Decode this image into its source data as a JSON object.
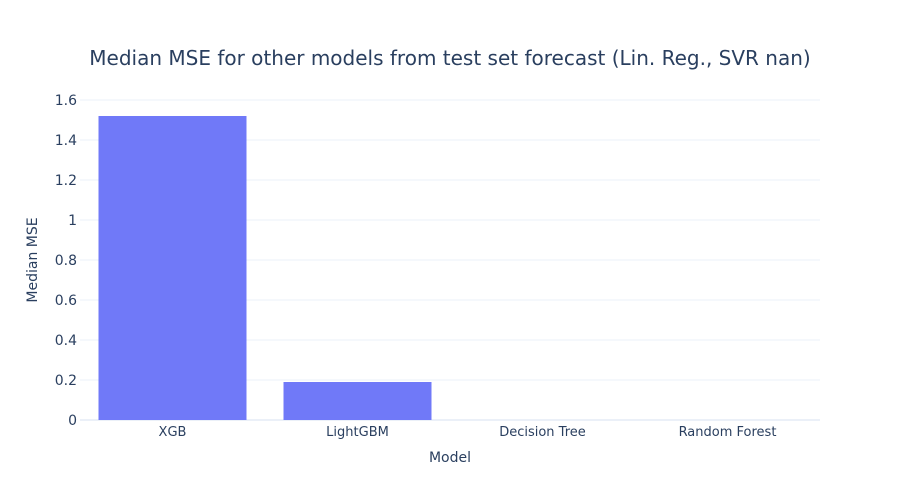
{
  "chart_data": {
    "type": "bar",
    "title": "Median MSE for other models from test set forecast (Lin. Reg., SVR nan)",
    "xlabel": "Model",
    "ylabel": "Median MSE",
    "categories": [
      "XGB",
      "LightGBM",
      "Decision Tree",
      "Random Forest"
    ],
    "values": [
      1.52,
      0.19,
      0.0,
      0.0
    ],
    "ylim": [
      0,
      1.6
    ],
    "yticks": [
      0,
      0.2,
      0.4,
      0.6,
      0.8,
      1,
      1.2,
      1.4,
      1.6
    ],
    "ytick_labels": [
      "0",
      "0.2",
      "0.4",
      "0.6",
      "0.8",
      "1",
      "1.2",
      "1.4",
      "1.6"
    ],
    "grid": true,
    "colors": {
      "bar": "#7079f8",
      "grid": "#ebf0f8",
      "text": "#2a3f5f",
      "background": "#ffffff"
    }
  }
}
